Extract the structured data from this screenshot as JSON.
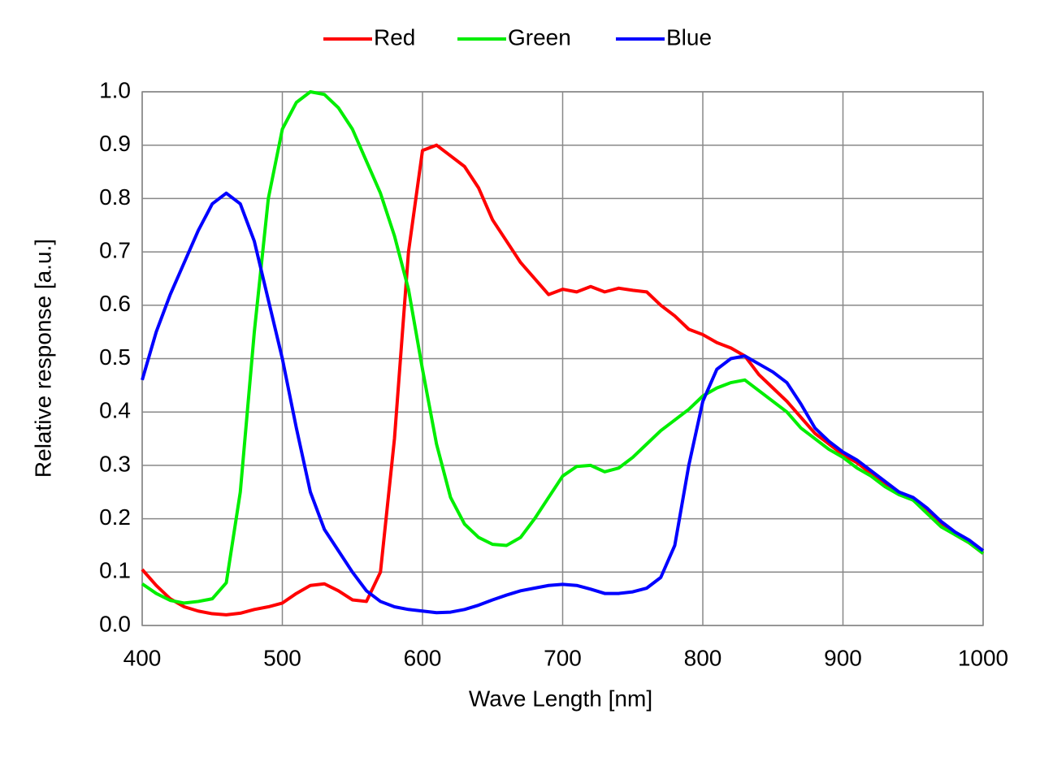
{
  "chart_data": {
    "type": "line",
    "x_label": "Wave Length [nm]",
    "y_label": "Relative response [a.u.]",
    "x": [
      400,
      410,
      420,
      430,
      440,
      450,
      460,
      470,
      480,
      490,
      500,
      510,
      520,
      530,
      540,
      550,
      560,
      570,
      580,
      590,
      600,
      610,
      620,
      630,
      640,
      650,
      660,
      670,
      680,
      690,
      700,
      710,
      720,
      730,
      740,
      750,
      760,
      770,
      780,
      790,
      800,
      810,
      820,
      830,
      840,
      850,
      860,
      870,
      880,
      890,
      900,
      910,
      920,
      930,
      940,
      950,
      960,
      970,
      980,
      990,
      1000
    ],
    "series": [
      {
        "name": "Red",
        "color": "#ff0000",
        "values": [
          0.105,
          0.075,
          0.05,
          0.035,
          0.027,
          0.022,
          0.02,
          0.023,
          0.03,
          0.035,
          0.042,
          0.06,
          0.075,
          0.078,
          0.065,
          0.048,
          0.045,
          0.1,
          0.35,
          0.7,
          0.89,
          0.9,
          0.88,
          0.86,
          0.82,
          0.76,
          0.72,
          0.68,
          0.65,
          0.62,
          0.63,
          0.625,
          0.635,
          0.625,
          0.632,
          0.628,
          0.625,
          0.6,
          0.58,
          0.555,
          0.545,
          0.53,
          0.52,
          0.505,
          0.47,
          0.445,
          0.42,
          0.39,
          0.36,
          0.34,
          0.32,
          0.305,
          0.285,
          0.265,
          0.25,
          0.235,
          0.215,
          0.19,
          0.17,
          0.155,
          0.135
        ]
      },
      {
        "name": "Green",
        "color": "#00ee00",
        "values": [
          0.078,
          0.06,
          0.047,
          0.042,
          0.045,
          0.05,
          0.08,
          0.25,
          0.55,
          0.8,
          0.93,
          0.98,
          1.0,
          0.995,
          0.97,
          0.93,
          0.87,
          0.81,
          0.73,
          0.63,
          0.48,
          0.34,
          0.24,
          0.19,
          0.165,
          0.152,
          0.15,
          0.165,
          0.2,
          0.24,
          0.28,
          0.298,
          0.3,
          0.288,
          0.295,
          0.315,
          0.34,
          0.365,
          0.385,
          0.405,
          0.43,
          0.445,
          0.455,
          0.46,
          0.44,
          0.42,
          0.4,
          0.37,
          0.35,
          0.33,
          0.315,
          0.295,
          0.28,
          0.26,
          0.245,
          0.235,
          0.21,
          0.185,
          0.17,
          0.155,
          0.135
        ]
      },
      {
        "name": "Blue",
        "color": "#0000ff",
        "values": [
          0.46,
          0.55,
          0.62,
          0.68,
          0.74,
          0.79,
          0.81,
          0.79,
          0.72,
          0.61,
          0.5,
          0.37,
          0.25,
          0.18,
          0.14,
          0.1,
          0.065,
          0.045,
          0.035,
          0.03,
          0.027,
          0.024,
          0.025,
          0.03,
          0.038,
          0.048,
          0.057,
          0.065,
          0.07,
          0.075,
          0.077,
          0.075,
          0.068,
          0.06,
          0.06,
          0.063,
          0.07,
          0.09,
          0.15,
          0.3,
          0.42,
          0.48,
          0.5,
          0.505,
          0.49,
          0.475,
          0.455,
          0.415,
          0.37,
          0.345,
          0.325,
          0.31,
          0.29,
          0.27,
          0.25,
          0.24,
          0.22,
          0.195,
          0.175,
          0.16,
          0.14
        ]
      }
    ],
    "xlim": [
      400,
      1000
    ],
    "xticks": [
      400,
      500,
      600,
      700,
      800,
      900,
      1000
    ],
    "ylim": [
      0,
      1
    ],
    "yticks": [
      {
        "value": 0,
        "label": "0.0"
      },
      0.1,
      0.2,
      0.3,
      0.4,
      0.5,
      0.6,
      0.7,
      0.8,
      0.9,
      {
        "value": 1,
        "label": "1.0"
      }
    ],
    "grid": true,
    "legend": "top"
  }
}
